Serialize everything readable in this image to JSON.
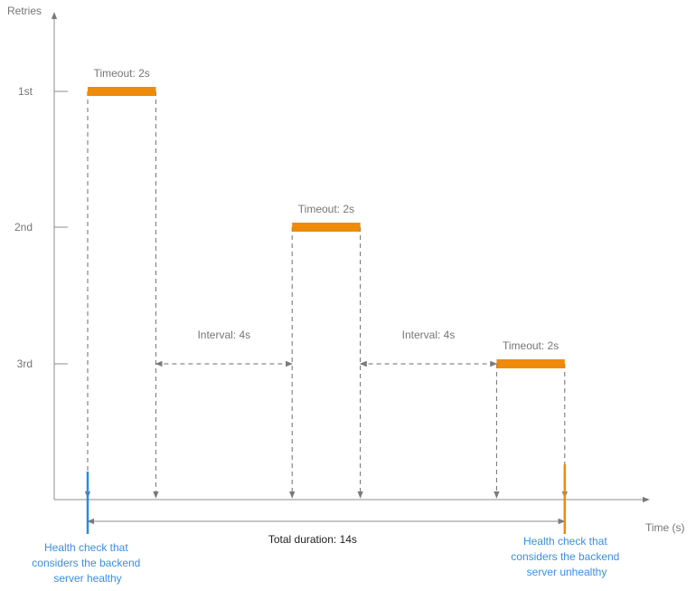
{
  "axes": {
    "y_label": "Retries",
    "x_label": "Time (s)",
    "retry_labels": [
      "1st",
      "2nd",
      "3rd"
    ]
  },
  "timeouts": [
    {
      "label": "Timeout: 2s",
      "retry": "1st",
      "start": 0,
      "end": 2
    },
    {
      "label": "Timeout: 2s",
      "retry": "2nd",
      "start": 6,
      "end": 8
    },
    {
      "label": "Timeout: 2s",
      "retry": "3rd",
      "start": 12,
      "end": 14
    }
  ],
  "intervals": [
    {
      "label": "Interval: 4s",
      "start": 2,
      "end": 6
    },
    {
      "label": "Interval: 4s",
      "start": 8,
      "end": 12
    }
  ],
  "total": {
    "label": "Total duration: 14s",
    "start": 0,
    "end": 14
  },
  "markers": {
    "healthy": {
      "lines": [
        "Health check that",
        "considers the backend",
        "server healthy"
      ],
      "color": "#2a8ae6"
    },
    "unhealthy": {
      "lines": [
        "Health check that",
        "considers the backend",
        "server unhealthy"
      ],
      "color": "#f08a0a"
    }
  },
  "colors": {
    "bar": "#f08a0a",
    "axis": "#8c8c8c",
    "text": "#767676",
    "note_text": "#3a8ee6"
  }
}
